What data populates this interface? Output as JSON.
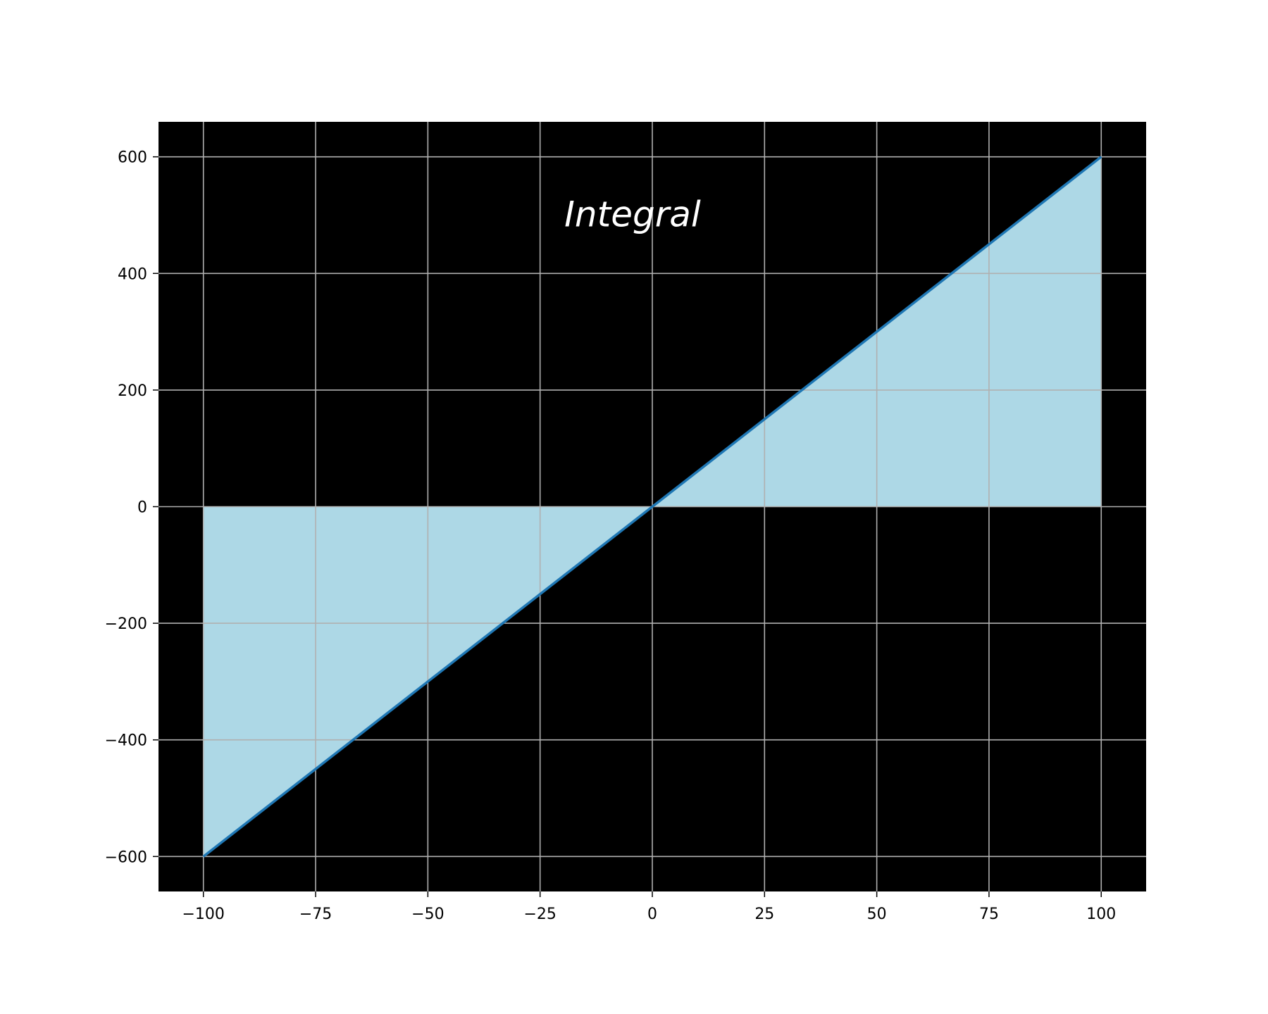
{
  "chart_data": {
    "type": "area",
    "title": "",
    "xlabel": "",
    "ylabel": "",
    "xlim": [
      -110,
      110
    ],
    "ylim": [
      -660,
      660
    ],
    "x_ticks": [
      -100,
      -75,
      -50,
      -25,
      0,
      25,
      50,
      75,
      100
    ],
    "y_ticks": [
      -600,
      -400,
      -200,
      0,
      200,
      400,
      600
    ],
    "x_tick_labels": [
      "−100",
      "−75",
      "−50",
      "−25",
      "0",
      "25",
      "50",
      "75",
      "100"
    ],
    "y_tick_labels": [
      "−600",
      "−400",
      "−200",
      "0",
      "200",
      "400",
      "600"
    ],
    "grid": true,
    "series": [
      {
        "x": [
          -100,
          100
        ],
        "y": [
          -600,
          600
        ],
        "fill_to": 0
      }
    ],
    "annotations": [
      {
        "text": "Integral",
        "x": 0,
        "y": 500
      }
    ],
    "colors": {
      "plot_background": "#000000",
      "figure_background": "#ffffff",
      "fill": "#add8e6",
      "line": "#1f77b4",
      "grid": "#b0b0b0",
      "annotation": "#ffffff"
    }
  }
}
